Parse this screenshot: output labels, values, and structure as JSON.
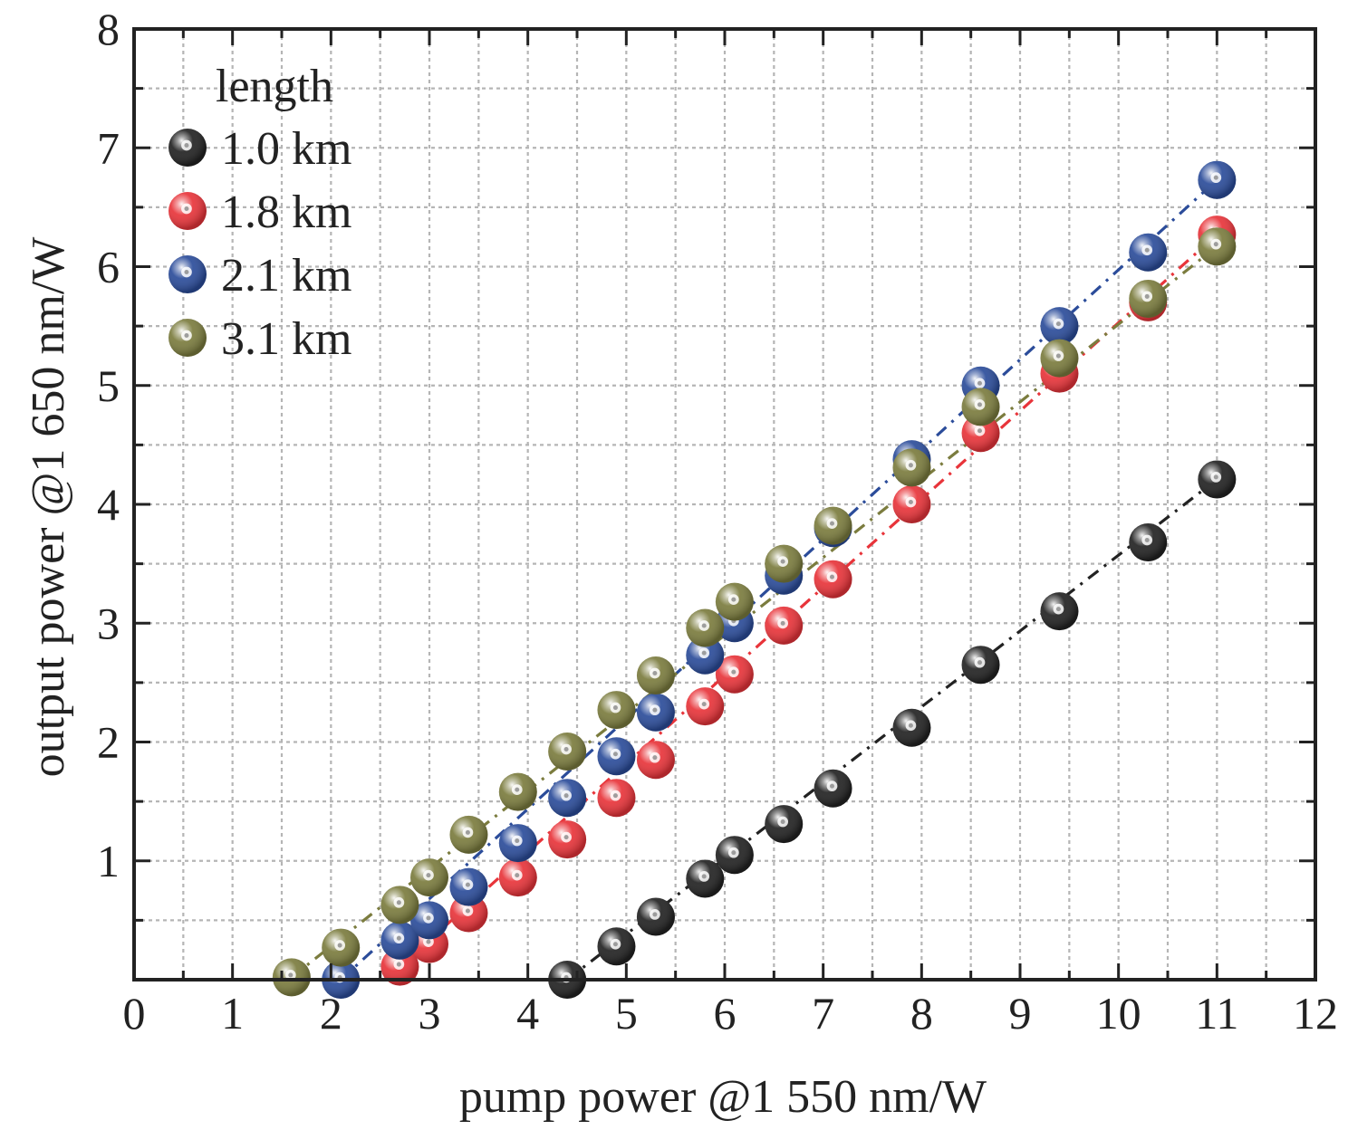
{
  "chart_data": {
    "type": "scatter",
    "xlabel": "pump power @1 550 nm/W",
    "ylabel": "output power @1 650 nm/W",
    "xlim": [
      0,
      12
    ],
    "ylim": [
      0,
      8
    ],
    "x_ticks": [
      0,
      1,
      2,
      3,
      4,
      5,
      6,
      7,
      8,
      9,
      10,
      11,
      12
    ],
    "y_ticks": [
      1,
      2,
      3,
      4,
      5,
      6,
      7,
      8
    ],
    "grid": true,
    "legend_title": "length",
    "legend_position": "top-left",
    "series": [
      {
        "name": "1.0 km",
        "color": "#222222",
        "x": [
          4.4,
          4.9,
          5.3,
          5.8,
          6.1,
          6.6,
          7.1,
          7.9,
          8.6,
          9.4,
          10.3,
          11.0
        ],
        "y": [
          0.0,
          0.28,
          0.53,
          0.85,
          1.05,
          1.31,
          1.61,
          2.12,
          2.65,
          3.1,
          3.68,
          4.21
        ],
        "fit": [
          [
            4.4,
            0.0
          ],
          [
            11.0,
            4.21
          ]
        ]
      },
      {
        "name": "1.8 km",
        "color": "#e8343a",
        "x": [
          2.7,
          3.0,
          3.4,
          3.9,
          4.4,
          4.9,
          5.3,
          5.8,
          6.1,
          6.6,
          7.1,
          7.9,
          8.6,
          9.4,
          10.3,
          11.0
        ],
        "y": [
          0.11,
          0.3,
          0.56,
          0.86,
          1.18,
          1.53,
          1.85,
          2.3,
          2.57,
          2.98,
          3.37,
          4.0,
          4.6,
          5.1,
          5.7,
          6.27
        ],
        "fit": [
          [
            2.7,
            0.11
          ],
          [
            11.0,
            6.27
          ]
        ]
      },
      {
        "name": "2.1 km",
        "color": "#2b4c9a",
        "x": [
          2.1,
          2.7,
          3.0,
          3.4,
          3.9,
          4.4,
          4.9,
          5.3,
          5.8,
          6.1,
          6.6,
          7.1,
          7.9,
          8.6,
          9.4,
          10.3,
          11.0
        ],
        "y": [
          0.0,
          0.33,
          0.5,
          0.78,
          1.15,
          1.53,
          1.88,
          2.25,
          2.73,
          3.0,
          3.4,
          3.8,
          4.38,
          5.0,
          5.5,
          6.12,
          6.73
        ],
        "fit": [
          [
            2.1,
            0.0
          ],
          [
            11.0,
            6.73
          ]
        ]
      },
      {
        "name": "3.1 km",
        "color": "#7b7c3e",
        "x": [
          1.6,
          2.1,
          2.7,
          3.0,
          3.4,
          3.9,
          4.4,
          4.9,
          5.3,
          5.8,
          6.1,
          6.6,
          7.1,
          7.9,
          8.6,
          9.4,
          10.3,
          11.0
        ],
        "y": [
          0.02,
          0.27,
          0.63,
          0.86,
          1.22,
          1.58,
          1.92,
          2.27,
          2.56,
          2.96,
          3.18,
          3.5,
          3.82,
          4.31,
          4.82,
          5.23,
          5.73,
          6.17
        ],
        "fit": [
          [
            1.6,
            0.02
          ],
          [
            11.0,
            6.17
          ]
        ]
      }
    ]
  }
}
